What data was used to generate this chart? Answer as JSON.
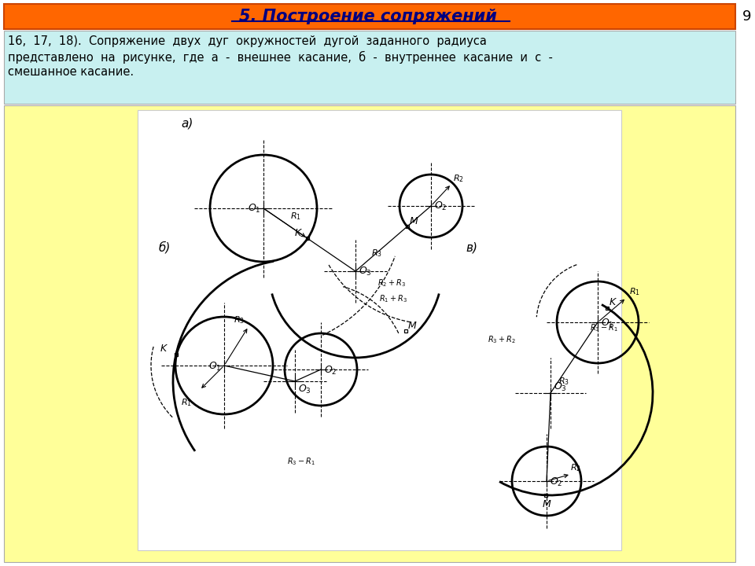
{
  "title": "5. Построение сопряжений",
  "title_color": "#000080",
  "title_bg_color": "#FF6600",
  "page_number": "9",
  "text_bg_color": "#C8F0F0",
  "body_bg_color": "#FFFF99",
  "diagram_bg_color": "#FFFFFF",
  "label_a": "а)",
  "label_b": "б)",
  "label_v": "в)",
  "text_line1": "16,  17,  18).  Сопряжение  двух  дуг  окружностей  дугой  заданного  радиуса",
  "text_line2": "представлено  на  рисунке,  где  а  -  внешнее  касание,  б  -  внутреннее  касание  и  с  -",
  "text_line3": "смешанное касание."
}
